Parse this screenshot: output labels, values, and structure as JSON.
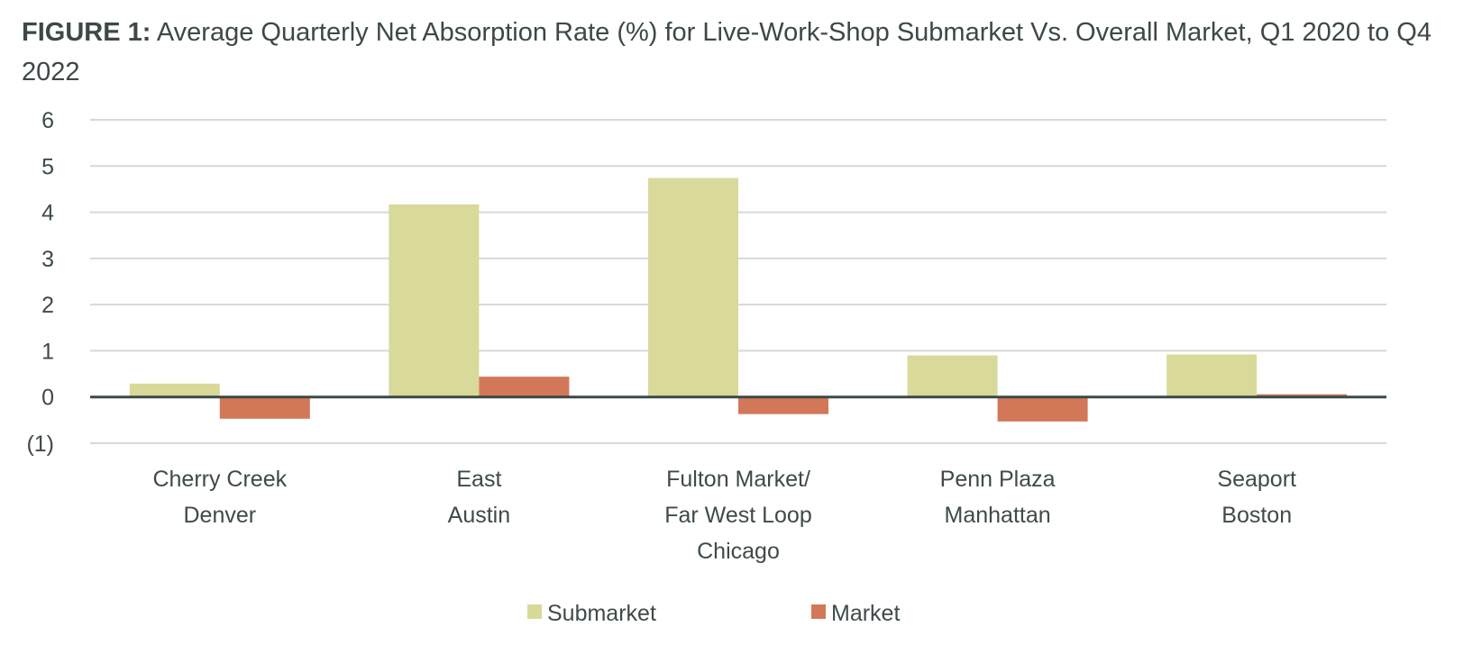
{
  "title_prefix": "FIGURE 1:",
  "title_text": " Average Quarterly Net Absorption Rate (%) for Live-Work-Shop Submarket Vs. Overall Market, Q1 2020 to Q4 2022",
  "chart_data": {
    "type": "bar",
    "title": "FIGURE 1: Average Quarterly Net Absorption Rate (%) for Live-Work-Shop Submarket Vs. Overall Market, Q1 2020 to Q4 2022",
    "categories": [
      [
        "Cherry Creek",
        "Denver"
      ],
      [
        "East",
        "Austin"
      ],
      [
        "Fulton Market/",
        "Far West Loop",
        "Chicago"
      ],
      [
        "Penn Plaza",
        "Manhattan"
      ],
      [
        "Seaport",
        "Boston"
      ]
    ],
    "series": [
      {
        "name": "Submarket",
        "color": "#D9D99A",
        "values": [
          0.29,
          4.17,
          4.74,
          0.9,
          0.92
        ]
      },
      {
        "name": "Market",
        "color": "#D27858",
        "values": [
          -0.47,
          0.44,
          -0.37,
          -0.53,
          0.06
        ]
      }
    ],
    "yticks": [
      6,
      5,
      4,
      3,
      2,
      1,
      0,
      -1
    ],
    "ytick_labels": [
      "6",
      "5",
      "4",
      "3",
      "2",
      "1",
      "0",
      "(1)"
    ],
    "ylim": [
      -1,
      6
    ],
    "grid": true,
    "legend": "bottom"
  }
}
